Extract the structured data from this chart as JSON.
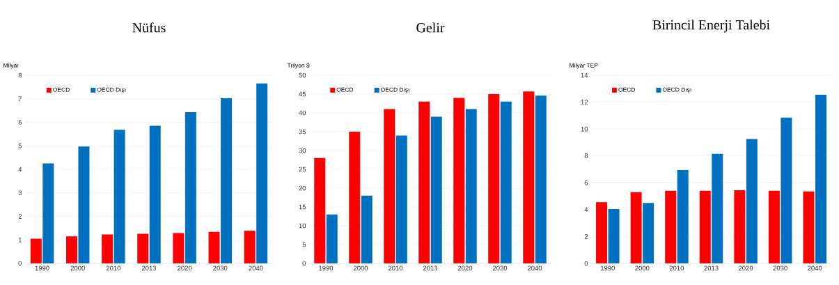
{
  "chart_data": [
    {
      "type": "bar",
      "title": "Nüfus",
      "ylabel": "Milyar",
      "categories": [
        "1990",
        "2000",
        "2010",
        "2013",
        "2020",
        "2030",
        "2040"
      ],
      "series": [
        {
          "name": "OECD",
          "color": "#ff0000",
          "values": [
            1.05,
            1.15,
            1.23,
            1.26,
            1.29,
            1.34,
            1.39
          ]
        },
        {
          "name": "OECD Dışı",
          "color": "#0070c0",
          "values": [
            4.25,
            4.97,
            5.68,
            5.85,
            6.43,
            7.02,
            7.65
          ]
        }
      ],
      "ylim": [
        0,
        8
      ],
      "yticks": [
        0,
        1,
        2,
        3,
        4,
        5,
        6,
        7,
        8
      ],
      "grid": "y",
      "legend": "top left"
    },
    {
      "type": "bar",
      "title": "Gelir",
      "ylabel": "Trilyon $",
      "categories": [
        "1990",
        "2000",
        "2010",
        "2013",
        "2020",
        "2030",
        "2040"
      ],
      "series": [
        {
          "name": "OECD",
          "color": "#ff0000",
          "values": [
            28,
            35,
            41,
            43,
            44,
            45,
            45.7
          ]
        },
        {
          "name": "OECD Dışı",
          "color": "#0070c0",
          "values": [
            13,
            18,
            34,
            39,
            41,
            43,
            44.6
          ]
        }
      ],
      "ylim": [
        0,
        50
      ],
      "yticks": [
        0,
        5,
        10,
        15,
        20,
        25,
        30,
        35,
        40,
        45,
        50
      ],
      "grid": "y",
      "legend": "top left"
    },
    {
      "type": "bar",
      "title": "Birincil Enerji Talebi",
      "ylabel": "Milyar TEP",
      "categories": [
        "1990",
        "2000",
        "2010",
        "2013",
        "2020",
        "2030",
        "2040"
      ],
      "series": [
        {
          "name": "OECD",
          "color": "#ff0000",
          "values": [
            4.55,
            5.3,
            5.4,
            5.4,
            5.45,
            5.4,
            5.35
          ]
        },
        {
          "name": "OECD Dışı",
          "color": "#0070c0",
          "values": [
            4.05,
            4.5,
            6.95,
            8.15,
            9.25,
            10.85,
            12.55
          ]
        }
      ],
      "ylim": [
        0,
        14
      ],
      "yticks": [
        0,
        2,
        4,
        6,
        8,
        10,
        12,
        14
      ],
      "grid": "y",
      "legend": "top left"
    }
  ]
}
